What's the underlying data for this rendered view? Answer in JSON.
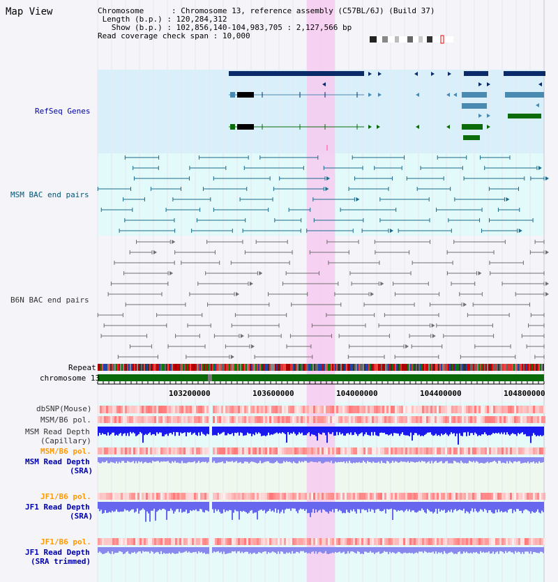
{
  "page": {
    "title": "Map View",
    "info": {
      "chromosome_label": "Chromosome",
      "chromosome_value": "Chromosome 13, reference assembly (C57BL/6J) (Build 37)",
      "length_label": "Length (b.p.)",
      "length_value": "120,284,312",
      "show_label": "Show (b.p.)",
      "show_value": "102,856,140-104,983,705 : 2,127,566 bp",
      "coverage_label": "Read coverage check span",
      "coverage_value": "10,000"
    }
  },
  "tracks": {
    "refseq": "RefSeq Genes",
    "msm_bac": "MSM BAC end pairs",
    "b6n_bac": "B6N BAC end pairs",
    "repeat": "Repeat",
    "chromosome": "chromosome 13",
    "dbsnp": "dbSNP(Mouse)",
    "msm_b6_pol_1": "MSM/B6 pol.",
    "msm_depth_cap_1": "MSM Read Depth",
    "msm_depth_cap_2": "(Capillary)",
    "msm_b6_pol_2": "MSM/B6 pol.",
    "msm_depth_sra_1": "MSM Read Depth",
    "msm_depth_sra_2": "(SRA)",
    "jf1_b6_pol_1": "JF1/B6 pol.",
    "jf1_depth_sra_1": "JF1 Read Depth",
    "jf1_depth_sra_2": "(SRA)",
    "jf1_b6_pol_2": "JF1/B6 pol.",
    "jf1_depth_trim_1": "JF1 Read Depth",
    "jf1_depth_trim_2": "(SRA trimmed)"
  },
  "ruler": {
    "ticks": [
      "103200000",
      "103600000",
      "104000000",
      "104400000",
      "104800000"
    ]
  },
  "colors": {
    "refseq_dark": "#0a2a6a",
    "refseq_mid": "#4a8ab0",
    "refseq_green": "#0b6b0b",
    "msm_pair": "#1a6a8a",
    "b6n_pair": "#707070",
    "highlight": "#f8c8f0",
    "label_blue": "#0000aa",
    "label_orange": "#ff9900",
    "label_teal": "#005577"
  }
}
